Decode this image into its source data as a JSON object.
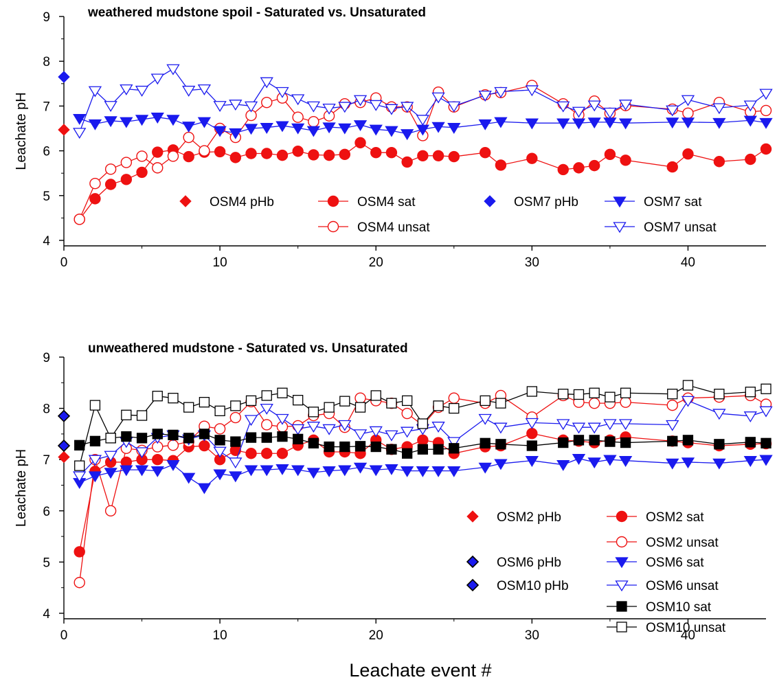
{
  "figure": {
    "xlabel": "Leachate event #"
  },
  "colors": {
    "red": "#ee1111",
    "blue": "#1a1aee",
    "black": "#000000"
  },
  "chart_data": [
    {
      "type": "line",
      "title": "weathered mudstone spoil  -  Saturated vs. Unsaturated",
      "xlabel": "",
      "ylabel": "Leachate pH",
      "xlim": [
        0,
        45
      ],
      "ylim": [
        4,
        9
      ],
      "xticks": [
        0,
        10,
        20,
        30,
        40
      ],
      "yticks": [
        4,
        5,
        6,
        7,
        8,
        9
      ],
      "grid": false,
      "legend_position": "inside-lower",
      "series": [
        {
          "name": "OSM4 pHb",
          "color": "red",
          "marker": "diamond",
          "fill": true,
          "line": false,
          "x": [
            0
          ],
          "y": [
            6.47
          ]
        },
        {
          "name": "OSM4 sat",
          "color": "red",
          "marker": "circle",
          "fill": true,
          "line": true,
          "x": [
            1,
            2,
            3,
            4,
            5,
            6,
            7,
            8,
            9,
            10,
            11,
            12,
            13,
            14,
            15,
            16,
            17,
            18,
            19,
            20,
            21,
            22,
            23,
            24,
            25,
            27,
            28,
            30,
            32,
            33,
            34,
            35,
            36,
            39,
            40,
            42,
            44,
            45
          ],
          "y": [
            4.47,
            4.93,
            5.25,
            5.36,
            5.52,
            5.97,
            6.02,
            5.87,
            5.97,
            5.98,
            5.85,
            5.94,
            5.94,
            5.9,
            5.99,
            5.91,
            5.9,
            5.92,
            6.18,
            5.96,
            5.96,
            5.75,
            5.89,
            5.89,
            5.87,
            5.96,
            5.68,
            5.83,
            5.58,
            5.62,
            5.67,
            5.92,
            5.79,
            5.64,
            5.93,
            5.76,
            5.81,
            6.04
          ]
        },
        {
          "name": "OSM4 unsat",
          "color": "red",
          "marker": "circle",
          "fill": false,
          "line": true,
          "x": [
            1,
            2,
            3,
            4,
            5,
            6,
            7,
            8,
            9,
            10,
            11,
            12,
            13,
            14,
            15,
            16,
            17,
            18,
            19,
            20,
            21,
            22,
            23,
            24,
            25,
            27,
            28,
            30,
            32,
            33,
            34,
            35,
            36,
            39,
            40,
            42,
            44,
            45
          ],
          "y": [
            4.47,
            5.27,
            5.59,
            5.74,
            5.88,
            5.62,
            5.88,
            6.3,
            6.0,
            6.5,
            6.3,
            6.79,
            7.08,
            7.18,
            6.75,
            6.65,
            6.78,
            7.05,
            7.08,
            7.18,
            6.98,
            6.98,
            6.34,
            7.31,
            6.98,
            7.25,
            7.3,
            7.46,
            7.05,
            6.8,
            7.11,
            6.84,
            7.01,
            6.93,
            6.84,
            7.08,
            6.87,
            6.9
          ]
        },
        {
          "name": "OSM7 pHb",
          "color": "blue",
          "marker": "diamond",
          "fill": true,
          "line": false,
          "x": [
            0
          ],
          "y": [
            7.65
          ]
        },
        {
          "name": "OSM7 sat",
          "color": "blue",
          "marker": "triangle-down",
          "fill": true,
          "line": true,
          "x": [
            1,
            2,
            3,
            4,
            5,
            6,
            7,
            8,
            9,
            10,
            11,
            12,
            13,
            14,
            15,
            16,
            17,
            18,
            19,
            20,
            21,
            22,
            23,
            24,
            25,
            27,
            28,
            30,
            32,
            33,
            34,
            35,
            36,
            39,
            40,
            42,
            44,
            45
          ],
          "y": [
            6.72,
            6.6,
            6.67,
            6.65,
            6.7,
            6.75,
            6.7,
            6.55,
            6.65,
            6.45,
            6.4,
            6.5,
            6.52,
            6.56,
            6.51,
            6.45,
            6.53,
            6.51,
            6.58,
            6.48,
            6.45,
            6.38,
            6.48,
            6.54,
            6.52,
            6.6,
            6.65,
            6.62,
            6.62,
            6.62,
            6.64,
            6.64,
            6.62,
            6.64,
            6.64,
            6.63,
            6.68,
            6.63
          ]
        },
        {
          "name": "OSM7 unsat",
          "color": "blue",
          "marker": "triangle-down",
          "fill": false,
          "line": true,
          "x": [
            1,
            2,
            3,
            4,
            5,
            6,
            7,
            8,
            9,
            10,
            11,
            12,
            13,
            14,
            15,
            16,
            17,
            18,
            19,
            20,
            21,
            22,
            23,
            24,
            25,
            27,
            28,
            30,
            32,
            33,
            34,
            35,
            36,
            39,
            40,
            42,
            44,
            45
          ],
          "y": [
            6.41,
            7.34,
            7.01,
            7.38,
            7.35,
            7.62,
            7.83,
            7.35,
            7.38,
            7.01,
            7.04,
            7.0,
            7.54,
            7.32,
            7.16,
            7.0,
            6.95,
            6.99,
            7.14,
            7.03,
            6.94,
            6.99,
            6.7,
            7.2,
            7.0,
            7.24,
            7.32,
            7.36,
            7.0,
            6.88,
            7.02,
            6.86,
            7.04,
            6.91,
            7.14,
            6.96,
            7.02,
            7.28
          ]
        }
      ]
    },
    {
      "type": "line",
      "title": "unweathered mudstone  -  Saturated vs. Unsaturated",
      "xlabel": "Leachate event #",
      "ylabel": "Leachate pH",
      "xlim": [
        0,
        45
      ],
      "ylim": [
        4,
        9
      ],
      "xticks": [
        0,
        10,
        20,
        30,
        40
      ],
      "yticks": [
        4,
        5,
        6,
        7,
        8,
        9
      ],
      "grid": false,
      "legend_position": "lower-right",
      "series": [
        {
          "name": "OSM2 pHb",
          "color": "red",
          "marker": "diamond",
          "fill": true,
          "line": false,
          "x": [
            0
          ],
          "y": [
            7.05
          ]
        },
        {
          "name": "OSM6 pHb",
          "color": "blue",
          "marker": "diamond",
          "fill": true,
          "outline": "black",
          "line": false,
          "x": [
            0
          ],
          "y": [
            7.85
          ]
        },
        {
          "name": "OSM10 pHb",
          "color": "blue",
          "marker": "diamond",
          "fill": true,
          "outline": "black",
          "line": false,
          "x": [
            0
          ],
          "y": [
            7.27
          ]
        },
        {
          "name": "OSM2 sat",
          "color": "red",
          "marker": "circle",
          "fill": true,
          "line": true,
          "x": [
            1,
            2,
            3,
            4,
            5,
            6,
            7,
            8,
            9,
            10,
            11,
            12,
            13,
            14,
            15,
            16,
            17,
            18,
            19,
            20,
            21,
            22,
            23,
            24,
            25,
            27,
            28,
            30,
            32,
            33,
            34,
            35,
            36,
            39,
            40,
            42,
            44,
            45
          ],
          "y": [
            5.2,
            6.77,
            6.95,
            6.95,
            7.0,
            7.0,
            6.98,
            7.25,
            7.27,
            7.0,
            7.18,
            7.12,
            7.12,
            7.12,
            7.28,
            7.38,
            7.15,
            7.15,
            7.12,
            7.38,
            7.2,
            7.25,
            7.38,
            7.33,
            7.12,
            7.25,
            7.27,
            7.51,
            7.38,
            7.36,
            7.33,
            7.38,
            7.44,
            7.36,
            7.33,
            7.27,
            7.3,
            7.31
          ]
        },
        {
          "name": "OSM2 unsat",
          "color": "red",
          "marker": "circle",
          "fill": false,
          "line": true,
          "x": [
            1,
            2,
            3,
            4,
            5,
            6,
            7,
            8,
            9,
            10,
            11,
            12,
            13,
            14,
            15,
            16,
            17,
            18,
            19,
            20,
            21,
            22,
            23,
            24,
            25,
            27,
            28,
            30,
            32,
            33,
            34,
            35,
            36,
            39,
            40,
            42,
            44,
            45
          ],
          "y": [
            4.6,
            7.0,
            6.0,
            7.22,
            7.18,
            7.25,
            7.28,
            7.35,
            7.65,
            7.6,
            7.82,
            8.13,
            7.68,
            7.64,
            7.66,
            7.86,
            7.9,
            7.63,
            8.2,
            8.15,
            8.1,
            7.9,
            7.67,
            8.02,
            8.2,
            8.1,
            8.25,
            7.83,
            8.25,
            8.12,
            8.1,
            8.1,
            8.12,
            8.06,
            8.2,
            8.22,
            8.25,
            8.08
          ]
        },
        {
          "name": "OSM6 sat",
          "color": "blue",
          "marker": "triangle-down",
          "fill": true,
          "line": true,
          "x": [
            1,
            2,
            3,
            4,
            5,
            6,
            7,
            8,
            9,
            10,
            11,
            12,
            13,
            14,
            15,
            16,
            17,
            18,
            19,
            20,
            21,
            22,
            23,
            24,
            25,
            27,
            28,
            30,
            32,
            33,
            34,
            35,
            36,
            39,
            40,
            42,
            44,
            45
          ],
          "y": [
            6.55,
            6.68,
            6.75,
            6.8,
            6.8,
            6.78,
            6.9,
            6.65,
            6.45,
            6.72,
            6.68,
            6.8,
            6.8,
            6.82,
            6.8,
            6.75,
            6.78,
            6.8,
            6.85,
            6.8,
            6.82,
            6.78,
            6.78,
            6.78,
            6.78,
            6.85,
            6.92,
            6.98,
            6.9,
            7.02,
            6.95,
            7.0,
            6.98,
            6.93,
            6.95,
            6.93,
            6.98,
            7.0
          ]
        },
        {
          "name": "OSM6 unsat",
          "color": "blue",
          "marker": "triangle-down",
          "fill": false,
          "line": true,
          "x": [
            1,
            2,
            3,
            4,
            5,
            6,
            7,
            8,
            9,
            10,
            11,
            12,
            13,
            14,
            15,
            16,
            17,
            18,
            19,
            20,
            21,
            22,
            23,
            24,
            25,
            27,
            28,
            30,
            32,
            33,
            34,
            35,
            36,
            39,
            40,
            42,
            44,
            45
          ],
          "y": [
            6.68,
            7.0,
            7.08,
            7.35,
            7.15,
            7.43,
            7.48,
            7.4,
            7.48,
            7.16,
            6.95,
            7.78,
            8.0,
            7.8,
            7.6,
            7.65,
            7.6,
            7.68,
            7.5,
            7.56,
            7.48,
            7.55,
            7.6,
            7.65,
            7.35,
            7.8,
            7.63,
            7.72,
            7.7,
            7.63,
            7.63,
            7.7,
            7.7,
            7.68,
            8.15,
            7.9,
            7.85,
            7.95
          ]
        },
        {
          "name": "OSM10 sat",
          "color": "black",
          "marker": "square",
          "fill": true,
          "line": true,
          "x": [
            1,
            2,
            3,
            4,
            5,
            6,
            7,
            8,
            9,
            10,
            11,
            12,
            13,
            14,
            15,
            16,
            17,
            18,
            19,
            20,
            21,
            22,
            23,
            24,
            25,
            27,
            28,
            30,
            32,
            33,
            34,
            35,
            36,
            39,
            40,
            42,
            44,
            45
          ],
          "y": [
            7.28,
            7.36,
            7.42,
            7.45,
            7.42,
            7.5,
            7.48,
            7.42,
            7.5,
            7.38,
            7.35,
            7.43,
            7.43,
            7.45,
            7.4,
            7.32,
            7.25,
            7.25,
            7.26,
            7.25,
            7.2,
            7.12,
            7.2,
            7.2,
            7.22,
            7.32,
            7.3,
            7.27,
            7.33,
            7.38,
            7.38,
            7.35,
            7.33,
            7.36,
            7.38,
            7.3,
            7.34,
            7.32
          ]
        },
        {
          "name": "OSM10 unsat",
          "color": "black",
          "marker": "square",
          "fill": false,
          "line": true,
          "x": [
            1,
            2,
            3,
            4,
            5,
            6,
            7,
            8,
            9,
            10,
            11,
            12,
            13,
            14,
            15,
            16,
            17,
            18,
            19,
            20,
            21,
            22,
            23,
            24,
            25,
            27,
            28,
            30,
            32,
            33,
            34,
            35,
            36,
            39,
            40,
            42,
            44,
            45
          ],
          "y": [
            6.88,
            8.06,
            7.42,
            7.87,
            7.86,
            8.24,
            8.2,
            8.02,
            8.12,
            7.95,
            8.05,
            8.15,
            8.25,
            8.3,
            8.16,
            7.93,
            8.02,
            8.14,
            8.02,
            8.25,
            8.1,
            8.15,
            7.7,
            8.05,
            8.0,
            8.15,
            8.1,
            8.33,
            8.28,
            8.27,
            8.3,
            8.22,
            8.3,
            8.28,
            8.45,
            8.28,
            8.32,
            8.38
          ]
        }
      ]
    }
  ]
}
